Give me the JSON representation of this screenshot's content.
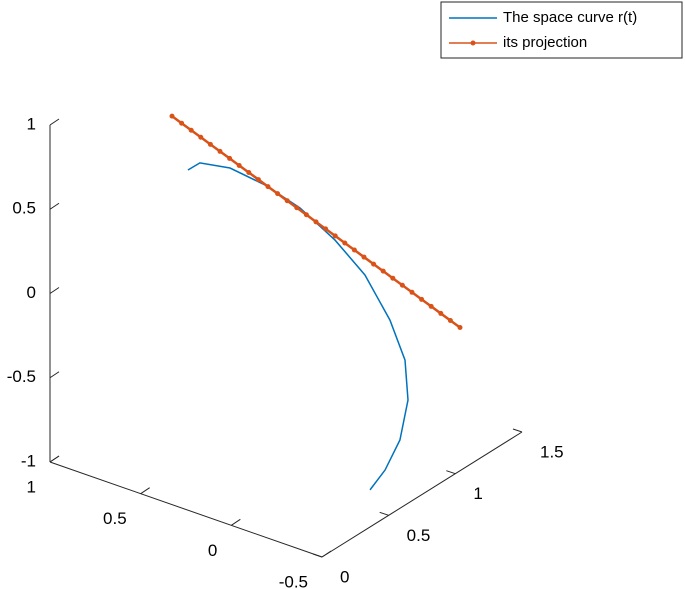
{
  "chart_data": {
    "type": "line3d",
    "xlim": [
      -0.5,
      1
    ],
    "xticks": [
      -0.5,
      0,
      0.5,
      1
    ],
    "ylim": [
      0,
      1.5
    ],
    "yticks": [
      0,
      0.5,
      1,
      1.5
    ],
    "zlim": [
      -1,
      1
    ],
    "zticks": [
      -1,
      -0.5,
      0,
      0.5,
      1
    ],
    "grid": false,
    "legend": "northeast",
    "series": [
      {
        "name": "The space curve r(t)",
        "color": "#0072bd",
        "marker": false,
        "x": [
          0.901,
          0.835,
          0.669,
          0.476,
          0.283,
          0.09,
          -0.075,
          -0.213,
          -0.296,
          -0.3125,
          -0.268,
          -0.186,
          -0.103
        ],
        "y": [
          0.9,
          0.9,
          0.9,
          0.9,
          0.9,
          0.9,
          0.9,
          0.9,
          0.9,
          0.9,
          0.9,
          0.9,
          0.9
        ],
        "z": [
          0.325,
          0.392,
          0.424,
          0.396,
          0.332,
          0.214,
          0.069,
          -0.147,
          -0.353,
          -0.584,
          -0.838,
          -1.047,
          -1.196
        ]
      },
      {
        "name": "its projection",
        "color": "#d95319",
        "marker": true,
        "x": [
          1,
          0.95,
          0.9,
          0.85,
          0.8,
          0.75,
          0.7,
          0.65,
          0.6,
          0.55,
          0.5,
          0.45,
          0.4,
          0.35,
          0.3,
          0.25,
          0.2,
          0.15,
          0.1,
          0.05,
          0,
          -0.05,
          -0.1,
          -0.15,
          -0.2,
          -0.25,
          -0.3,
          -0.35,
          -0.4,
          -0.45,
          -0.5
        ],
        "y": [
          0.915,
          0.919,
          0.923,
          0.927,
          0.931,
          0.935,
          0.939,
          0.943,
          0.947,
          0.951,
          0.955,
          0.959,
          0.963,
          0.967,
          0.971,
          0.975,
          0.979,
          0.983,
          0.987,
          0.991,
          0.995,
          0.999,
          1.003,
          1.007,
          1.011,
          1.015,
          1.019,
          1.023,
          1.027,
          1.031,
          1.035
        ],
        "z": [
          0.6,
          0.575,
          0.55,
          0.525,
          0.5,
          0.475,
          0.45,
          0.425,
          0.4,
          0.375,
          0.35,
          0.325,
          0.3,
          0.275,
          0.25,
          0.225,
          0.2,
          0.175,
          0.15,
          0.125,
          0.1,
          0.075,
          0.05,
          0.025,
          0,
          -0.025,
          -0.05,
          -0.075,
          -0.1,
          -0.125,
          -0.15
        ]
      }
    ]
  }
}
